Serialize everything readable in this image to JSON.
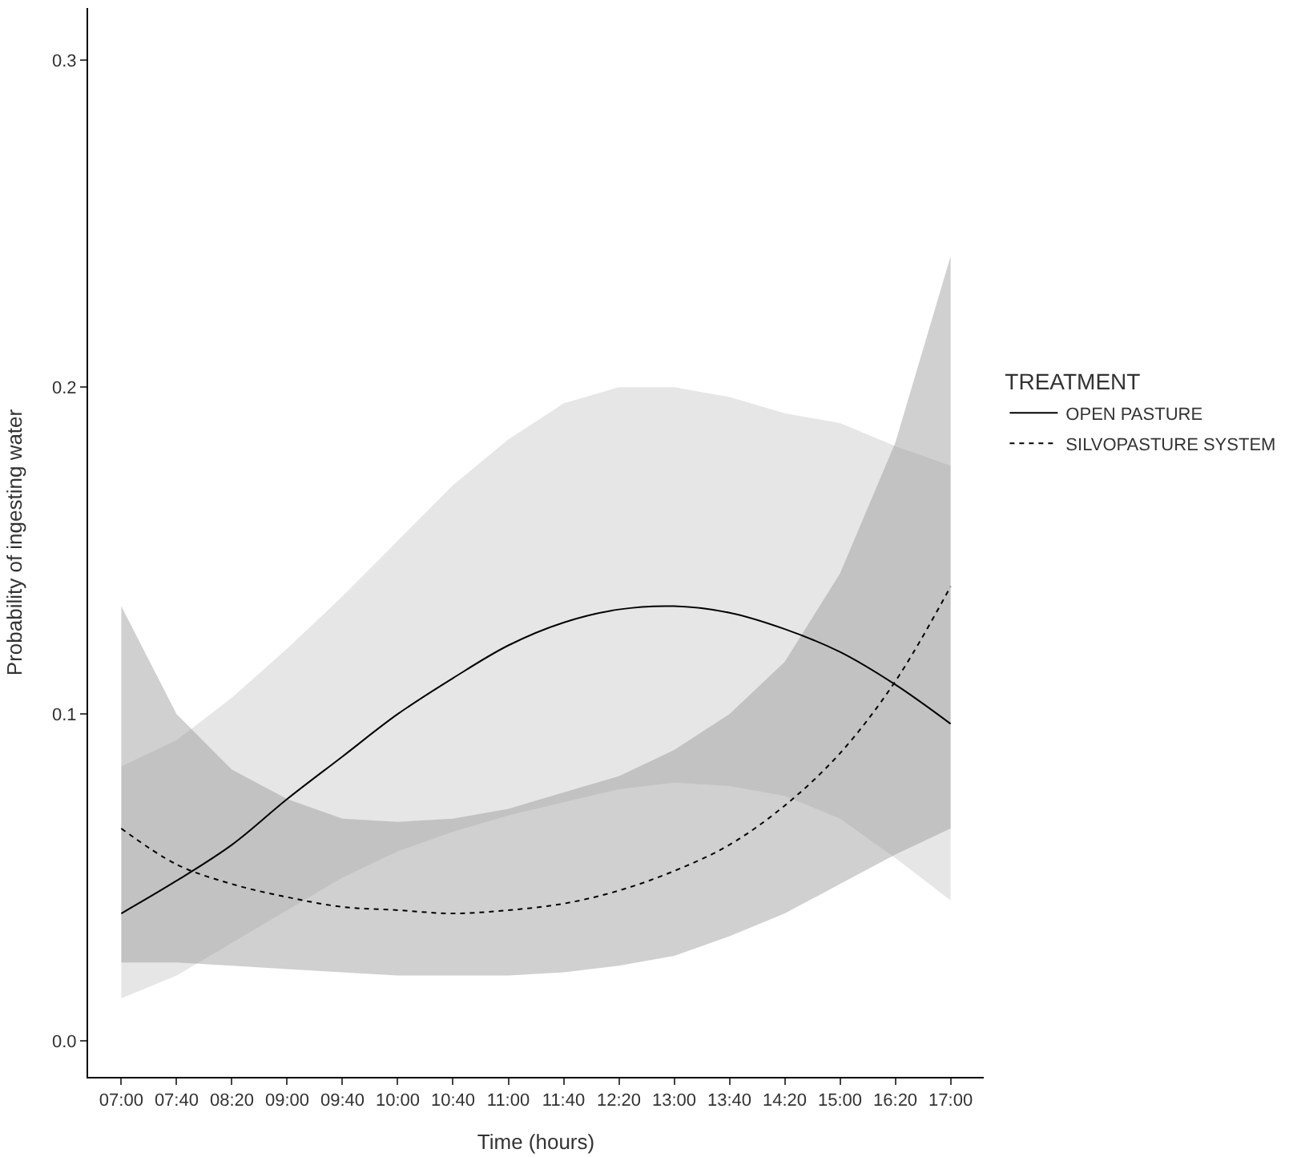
{
  "chart_data": {
    "type": "line",
    "xlabel": "Time (hours)",
    "ylabel": "Probability of ingesting water",
    "legend_title": "TREATMENT",
    "legend": "right",
    "marker": "none",
    "categories": [
      "07:00",
      "07:40",
      "08:20",
      "09:00",
      "09:40",
      "10:00",
      "10:40",
      "11:00",
      "11:40",
      "12:20",
      "13:00",
      "13:40",
      "14:20",
      "15:00",
      "16:20",
      "17:00"
    ],
    "ylim": [
      -0.011,
      0.316
    ],
    "yticks": [
      {
        "value": 0,
        "label": "0.0"
      },
      {
        "value": 0.1,
        "label": "0.1"
      },
      {
        "value": 0.2,
        "label": "0.2"
      },
      {
        "value": 0.3,
        "label": "0.3"
      }
    ],
    "series": [
      {
        "name": "OPEN PASTURE",
        "color": "#000000",
        "line_style": "solid",
        "values": [
          0.039,
          0.049,
          0.06,
          0.074,
          0.087,
          0.1,
          0.111,
          0.121,
          0.128,
          0.132,
          0.133,
          0.131,
          0.126,
          0.119,
          0.109,
          0.097
        ],
        "lower": [
          0.013,
          0.02,
          0.03,
          0.04,
          0.05,
          0.058,
          0.064,
          0.069,
          0.073,
          0.077,
          0.079,
          0.078,
          0.075,
          0.068,
          0.056,
          0.043
        ],
        "upper": [
          0.084,
          0.092,
          0.105,
          0.12,
          0.136,
          0.153,
          0.17,
          0.184,
          0.195,
          0.2,
          0.2,
          0.197,
          0.192,
          0.189,
          0.182,
          0.176
        ]
      },
      {
        "name": "SILVOPASTURE SYSTEM",
        "color": "#000000",
        "line_style": "dotted",
        "values": [
          0.065,
          0.054,
          0.048,
          0.044,
          0.041,
          0.04,
          0.039,
          0.04,
          0.042,
          0.046,
          0.052,
          0.06,
          0.072,
          0.088,
          0.11,
          0.139
        ],
        "lower": [
          0.024,
          0.024,
          0.023,
          0.022,
          0.021,
          0.02,
          0.02,
          0.02,
          0.021,
          0.023,
          0.026,
          0.032,
          0.039,
          0.048,
          0.057,
          0.065
        ],
        "upper": [
          0.133,
          0.1,
          0.083,
          0.074,
          0.068,
          0.067,
          0.068,
          0.071,
          0.076,
          0.081,
          0.089,
          0.1,
          0.116,
          0.143,
          0.183,
          0.24
        ]
      }
    ]
  }
}
